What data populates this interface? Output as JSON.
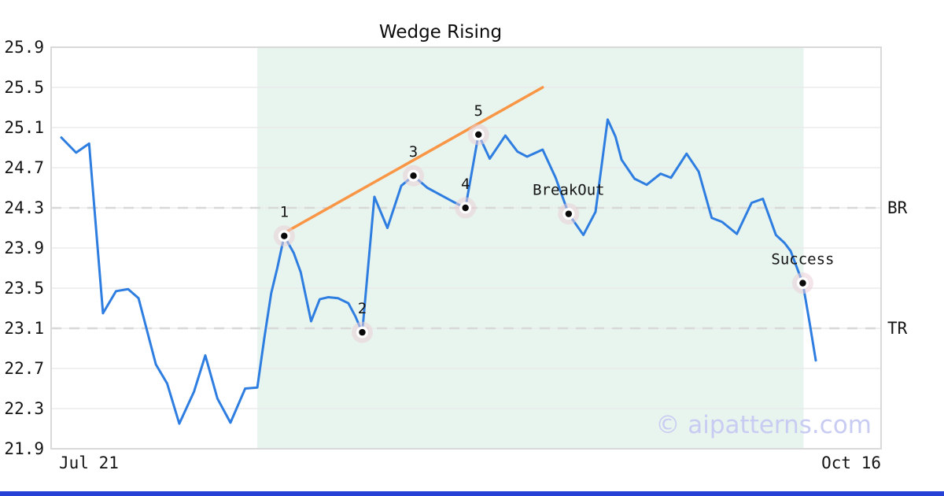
{
  "page": {
    "title": "Wedge Rising",
    "watermark": "© aipatterns.com",
    "bottom_bar_color": "#2541d6"
  },
  "chart_data": {
    "type": "line",
    "title": "Wedge Rising",
    "xlabel": "",
    "ylabel": "",
    "x_axis": {
      "start_label": "Jul 21",
      "end_label": "Oct 16",
      "span_days": 87
    },
    "y_axis": {
      "min": 21.9,
      "max": 25.9,
      "tick_step": 0.4,
      "ticks": [
        25.9,
        25.5,
        25.1,
        24.7,
        24.3,
        23.9,
        23.5,
        23.1,
        22.7,
        22.3,
        21.9
      ]
    },
    "grid": true,
    "levels": [
      {
        "name": "BR",
        "value": 24.3,
        "style": "dashed"
      },
      {
        "name": "TR",
        "value": 23.1,
        "style": "dashed"
      }
    ],
    "pattern_zone": {
      "start_day": 22.6,
      "end_day": 85.6
    },
    "series": [
      {
        "name": "price",
        "points": [
          [
            0.0,
            25.0
          ],
          [
            1.7,
            24.85
          ],
          [
            3.2,
            24.94
          ],
          [
            4.8,
            23.25
          ],
          [
            6.3,
            23.47
          ],
          [
            7.7,
            23.49
          ],
          [
            8.9,
            23.4
          ],
          [
            10.9,
            22.74
          ],
          [
            12.2,
            22.55
          ],
          [
            13.6,
            22.15
          ],
          [
            15.3,
            22.47
          ],
          [
            16.6,
            22.83
          ],
          [
            18.0,
            22.4
          ],
          [
            19.5,
            22.16
          ],
          [
            21.2,
            22.5
          ],
          [
            22.6,
            22.51
          ],
          [
            23.4,
            23.0
          ],
          [
            24.2,
            23.45
          ],
          [
            24.9,
            23.7
          ],
          [
            25.7,
            24.02
          ],
          [
            26.8,
            23.85
          ],
          [
            27.6,
            23.66
          ],
          [
            28.8,
            23.17
          ],
          [
            29.8,
            23.39
          ],
          [
            30.8,
            23.41
          ],
          [
            31.9,
            23.4
          ],
          [
            33.1,
            23.35
          ],
          [
            33.9,
            23.22
          ],
          [
            34.7,
            23.06
          ],
          [
            36.1,
            24.41
          ],
          [
            37.6,
            24.1
          ],
          [
            39.2,
            24.52
          ],
          [
            40.6,
            24.62
          ],
          [
            42.2,
            24.5
          ],
          [
            43.7,
            24.43
          ],
          [
            45.2,
            24.36
          ],
          [
            46.6,
            24.3
          ],
          [
            48.1,
            25.03
          ],
          [
            49.4,
            24.79
          ],
          [
            51.2,
            25.02
          ],
          [
            52.6,
            24.86
          ],
          [
            53.7,
            24.81
          ],
          [
            55.5,
            24.88
          ],
          [
            57.0,
            24.6
          ],
          [
            58.5,
            24.24
          ],
          [
            60.2,
            24.03
          ],
          [
            61.6,
            24.26
          ],
          [
            63.0,
            25.18
          ],
          [
            63.9,
            25.01
          ],
          [
            64.6,
            24.78
          ],
          [
            66.1,
            24.59
          ],
          [
            67.5,
            24.53
          ],
          [
            69.1,
            24.64
          ],
          [
            70.3,
            24.6
          ],
          [
            72.1,
            24.84
          ],
          [
            73.5,
            24.66
          ],
          [
            75.0,
            24.2
          ],
          [
            76.2,
            24.16
          ],
          [
            77.9,
            24.04
          ],
          [
            79.6,
            24.35
          ],
          [
            80.9,
            24.39
          ],
          [
            82.4,
            24.03
          ],
          [
            83.4,
            23.95
          ],
          [
            84.1,
            23.87
          ],
          [
            85.5,
            23.55
          ],
          [
            86.3,
            23.15
          ],
          [
            87.0,
            22.78
          ]
        ]
      }
    ],
    "trendline": {
      "from_day": 25.7,
      "from_value": 24.05,
      "to_day": 55.5,
      "to_value": 25.5
    },
    "annotations": [
      {
        "label": "1",
        "day": 25.7,
        "value": 24.02
      },
      {
        "label": "2",
        "day": 34.7,
        "value": 23.06
      },
      {
        "label": "3",
        "day": 40.6,
        "value": 24.62
      },
      {
        "label": "4",
        "day": 46.6,
        "value": 24.3
      },
      {
        "label": "5",
        "day": 48.1,
        "value": 25.03
      },
      {
        "label": "BreakOut",
        "day": 58.5,
        "value": 24.24
      },
      {
        "label": "Success",
        "day": 85.5,
        "value": 23.55
      }
    ],
    "legend": null,
    "colors": {
      "price_line": "#2e7de0",
      "trendline": "#f99646",
      "pattern_zone": "#e8f4ee",
      "grid_line": "#e8e8e8",
      "level_dash": "#d8d8d8",
      "plot_border": "#d9d9d9",
      "marker_dot": "#0a0a0a",
      "marker_ring": "#ffffff",
      "marker_halo": "#e9cfd9",
      "tick_text": "#141414",
      "annotation_text": "#141414"
    }
  }
}
